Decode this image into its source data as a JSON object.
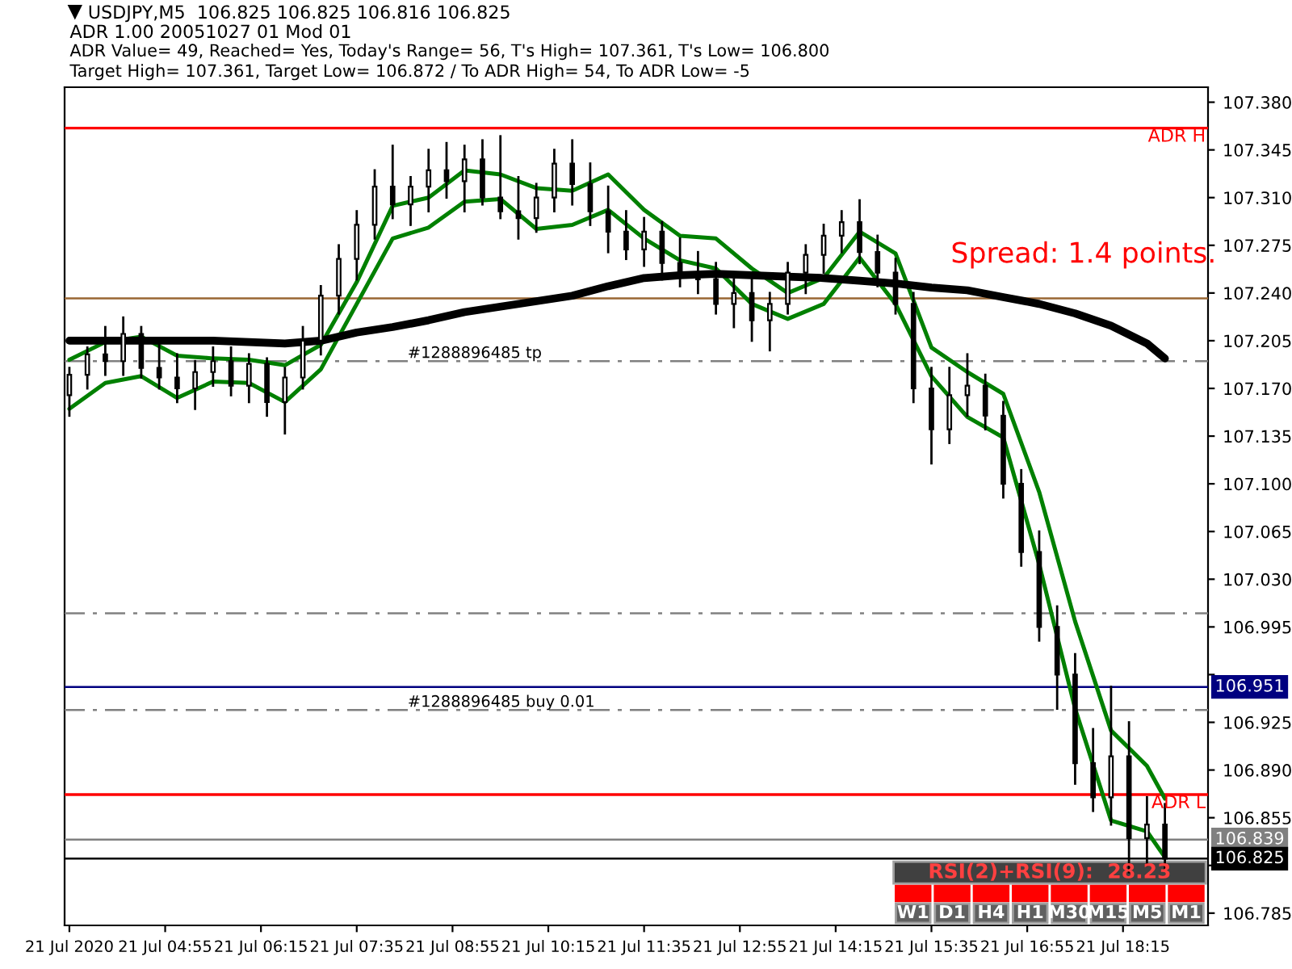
{
  "chart_data": {
    "type": "candlestick",
    "title": "USDJPY,M5  106.825 106.825 106.816 106.825",
    "subtitle": "ADR 1.00 20051027 01 Mod 01",
    "annotations": [
      "ADR Value= 49, Reached= Yes, Today's Range= 56, T's High= 107.361, T's Low= 106.800",
      "Target High= 107.361, Target Low= 106.872 / To ADR High= 54, To ADR Low= -5",
      "Spread: 1.4 points.",
      "RSI(2)+RSI(9):  28.23",
      "W1",
      "D1",
      "H4",
      "H1",
      "M30",
      "M15",
      "M5",
      "M1"
    ],
    "color": "#000000",
    "x": [
      "2020-07-21T03:35",
      "2020-07-21T03:50",
      "2020-07-21T04:05",
      "2020-07-21T04:20",
      "2020-07-21T04:35",
      "2020-07-21T04:50",
      "2020-07-21T05:05",
      "2020-07-21T05:20",
      "2020-07-21T05:35",
      "2020-07-21T05:50",
      "2020-07-21T06:05",
      "2020-07-21T06:20",
      "2020-07-21T06:35",
      "2020-07-21T06:50",
      "2020-07-21T07:05",
      "2020-07-21T07:20",
      "2020-07-21T07:35",
      "2020-07-21T07:50",
      "2020-07-21T08:05",
      "2020-07-21T08:20",
      "2020-07-21T08:35",
      "2020-07-21T08:50",
      "2020-07-21T09:05",
      "2020-07-21T09:20",
      "2020-07-21T09:35",
      "2020-07-21T09:50",
      "2020-07-21T10:05",
      "2020-07-21T10:20",
      "2020-07-21T10:35",
      "2020-07-21T10:50",
      "2020-07-21T11:05",
      "2020-07-21T11:20",
      "2020-07-21T11:35",
      "2020-07-21T11:50",
      "2020-07-21T12:05",
      "2020-07-21T12:20",
      "2020-07-21T12:35",
      "2020-07-21T12:50",
      "2020-07-21T13:05",
      "2020-07-21T13:20",
      "2020-07-21T13:35",
      "2020-07-21T13:50",
      "2020-07-21T14:05",
      "2020-07-21T14:20",
      "2020-07-21T14:35",
      "2020-07-21T14:50",
      "2020-07-21T15:05",
      "2020-07-21T15:20",
      "2020-07-21T15:35",
      "2020-07-21T15:50",
      "2020-07-21T16:05",
      "2020-07-21T16:20",
      "2020-07-21T16:35",
      "2020-07-21T16:50",
      "2020-07-21T17:05",
      "2020-07-21T17:20",
      "2020-07-21T17:35",
      "2020-07-21T17:50",
      "2020-07-21T18:05",
      "2020-07-21T18:20",
      "2020-07-21T18:35",
      "2020-07-21T18:50"
    ],
    "ohlc": [
      [
        107.165,
        107.185,
        107.15,
        107.18
      ],
      [
        107.18,
        107.2,
        107.17,
        107.195
      ],
      [
        107.195,
        107.215,
        107.18,
        107.19
      ],
      [
        107.19,
        107.222,
        107.18,
        107.21
      ],
      [
        107.21,
        107.215,
        107.178,
        107.185
      ],
      [
        107.185,
        107.205,
        107.17,
        107.178
      ],
      [
        107.178,
        107.195,
        107.16,
        107.17
      ],
      [
        107.17,
        107.19,
        107.155,
        107.182
      ],
      [
        107.182,
        107.2,
        107.172,
        107.19
      ],
      [
        107.19,
        107.2,
        107.165,
        107.172
      ],
      [
        107.172,
        107.195,
        107.16,
        107.188
      ],
      [
        107.188,
        107.192,
        107.15,
        107.16
      ],
      [
        107.16,
        107.185,
        107.137,
        107.178
      ],
      [
        107.178,
        107.215,
        107.17,
        107.205
      ],
      [
        107.205,
        107.245,
        107.195,
        107.238
      ],
      [
        107.238,
        107.275,
        107.225,
        107.265
      ],
      [
        107.265,
        107.3,
        107.25,
        107.29
      ],
      [
        107.29,
        107.33,
        107.28,
        107.318
      ],
      [
        107.318,
        107.348,
        107.295,
        107.305
      ],
      [
        107.305,
        107.325,
        107.29,
        107.318
      ],
      [
        107.318,
        107.345,
        107.3,
        107.33
      ],
      [
        107.33,
        107.35,
        107.31,
        107.322
      ],
      [
        107.322,
        107.348,
        107.3,
        107.338
      ],
      [
        107.338,
        107.352,
        107.305,
        107.31
      ],
      [
        107.31,
        107.355,
        107.295,
        107.3
      ],
      [
        107.3,
        107.325,
        107.28,
        107.295
      ],
      [
        107.295,
        107.32,
        107.285,
        107.31
      ],
      [
        107.31,
        107.345,
        107.3,
        107.335
      ],
      [
        107.335,
        107.352,
        107.305,
        107.32
      ],
      [
        107.32,
        107.335,
        107.29,
        107.3
      ],
      [
        107.3,
        107.318,
        107.27,
        107.285
      ],
      [
        107.285,
        107.3,
        107.265,
        107.272
      ],
      [
        107.272,
        107.295,
        107.26,
        107.285
      ],
      [
        107.285,
        107.292,
        107.25,
        107.262
      ],
      [
        107.262,
        107.28,
        107.245,
        107.255
      ],
      [
        107.255,
        107.27,
        107.24,
        107.25
      ],
      [
        107.25,
        107.262,
        107.225,
        107.232
      ],
      [
        107.232,
        107.25,
        107.215,
        107.24
      ],
      [
        107.24,
        107.255,
        107.205,
        107.22
      ],
      [
        107.22,
        107.24,
        107.198,
        107.232
      ],
      [
        107.232,
        107.262,
        107.225,
        107.255
      ],
      [
        107.255,
        107.275,
        107.24,
        107.268
      ],
      [
        107.268,
        107.29,
        107.255,
        107.282
      ],
      [
        107.282,
        107.3,
        107.27,
        107.292
      ],
      [
        107.292,
        107.308,
        107.262,
        107.27
      ],
      [
        107.27,
        107.282,
        107.245,
        107.255
      ],
      [
        107.255,
        107.265,
        107.225,
        107.232
      ],
      [
        107.232,
        107.24,
        107.16,
        107.17
      ],
      [
        107.17,
        107.185,
        107.115,
        107.14
      ],
      [
        107.14,
        107.185,
        107.13,
        107.165
      ],
      [
        107.165,
        107.195,
        107.15,
        107.172
      ],
      [
        107.172,
        107.18,
        107.14,
        107.15
      ],
      [
        107.15,
        107.16,
        107.09,
        107.1
      ],
      [
        107.1,
        107.11,
        107.04,
        107.05
      ],
      [
        107.05,
        107.065,
        106.985,
        106.995
      ],
      [
        106.995,
        107.01,
        106.935,
        106.96
      ],
      [
        106.96,
        106.975,
        106.88,
        106.895
      ],
      [
        106.895,
        106.92,
        106.86,
        106.87
      ],
      [
        106.87,
        106.951,
        106.85,
        106.9
      ],
      [
        106.9,
        106.925,
        106.815,
        106.84
      ],
      [
        106.84,
        106.87,
        106.82,
        106.85
      ],
      [
        106.85,
        106.865,
        106.816,
        106.825
      ]
    ],
    "series": [
      {
        "type": "line",
        "color": "#008000",
        "x": [
          "2020-07-21T03:35",
          "2020-07-21T04:05",
          "2020-07-21T04:35",
          "2020-07-21T05:05",
          "2020-07-21T05:35",
          "2020-07-21T06:05",
          "2020-07-21T06:35",
          "2020-07-21T07:05",
          "2020-07-21T07:35",
          "2020-07-21T08:05",
          "2020-07-21T08:35",
          "2020-07-21T09:05",
          "2020-07-21T09:35",
          "2020-07-21T10:05",
          "2020-07-21T10:35",
          "2020-07-21T11:05",
          "2020-07-21T11:35",
          "2020-07-21T12:05",
          "2020-07-21T12:35",
          "2020-07-21T13:05",
          "2020-07-21T13:35",
          "2020-07-21T14:05",
          "2020-07-21T14:35",
          "2020-07-21T15:05",
          "2020-07-21T15:35",
          "2020-07-21T16:05",
          "2020-07-21T16:35",
          "2020-07-21T17:05",
          "2020-07-21T17:35",
          "2020-07-21T18:05",
          "2020-07-21T18:35",
          "2020-07-21T18:50"
        ],
        "values": [
          107.191,
          107.204,
          107.208,
          107.194,
          107.192,
          107.191,
          107.187,
          107.202,
          107.248,
          107.304,
          107.31,
          107.33,
          107.327,
          107.317,
          107.315,
          107.327,
          107.301,
          107.282,
          107.28,
          107.258,
          107.24,
          107.251,
          107.285,
          107.269,
          107.2,
          107.182,
          107.166,
          107.094,
          106.999,
          106.919,
          106.893,
          106.869
        ]
      },
      {
        "type": "line",
        "color": "#008000",
        "x": [
          "2020-07-21T03:35",
          "2020-07-21T04:05",
          "2020-07-21T04:35",
          "2020-07-21T05:05",
          "2020-07-21T05:35",
          "2020-07-21T06:05",
          "2020-07-21T06:35",
          "2020-07-21T07:05",
          "2020-07-21T07:35",
          "2020-07-21T08:05",
          "2020-07-21T08:35",
          "2020-07-21T09:05",
          "2020-07-21T09:35",
          "2020-07-21T10:05",
          "2020-07-21T10:35",
          "2020-07-21T11:05",
          "2020-07-21T11:35",
          "2020-07-21T12:05",
          "2020-07-21T12:35",
          "2020-07-21T13:05",
          "2020-07-21T13:35",
          "2020-07-21T14:05",
          "2020-07-21T14:35",
          "2020-07-21T15:05",
          "2020-07-21T15:35",
          "2020-07-21T16:05",
          "2020-07-21T16:35",
          "2020-07-21T17:05",
          "2020-07-21T17:35",
          "2020-07-21T18:05",
          "2020-07-21T18:35",
          "2020-07-21T18:50"
        ],
        "values": [
          107.155,
          107.174,
          107.179,
          107.163,
          107.175,
          107.174,
          107.16,
          107.184,
          107.232,
          107.28,
          107.288,
          107.307,
          107.309,
          107.287,
          107.29,
          107.301,
          107.28,
          107.264,
          107.258,
          107.232,
          107.221,
          107.232,
          107.266,
          107.232,
          107.179,
          107.149,
          107.134,
          107.041,
          106.935,
          106.853,
          106.845,
          106.826
        ]
      },
      {
        "type": "line",
        "color": "#000000",
        "x": [
          "2020-07-21T03:35",
          "2020-07-21T04:05",
          "2020-07-21T04:35",
          "2020-07-21T05:05",
          "2020-07-21T05:35",
          "2020-07-21T06:05",
          "2020-07-21T06:35",
          "2020-07-21T07:05",
          "2020-07-21T07:35",
          "2020-07-21T08:05",
          "2020-07-21T08:35",
          "2020-07-21T09:05",
          "2020-07-21T09:35",
          "2020-07-21T10:05",
          "2020-07-21T10:35",
          "2020-07-21T11:05",
          "2020-07-21T11:35",
          "2020-07-21T12:05",
          "2020-07-21T12:35",
          "2020-07-21T13:05",
          "2020-07-21T13:35",
          "2020-07-21T14:05",
          "2020-07-21T14:35",
          "2020-07-21T15:05",
          "2020-07-21T15:35",
          "2020-07-21T16:05",
          "2020-07-21T16:35",
          "2020-07-21T17:05",
          "2020-07-21T17:35",
          "2020-07-21T18:05",
          "2020-07-21T18:35",
          "2020-07-21T18:50"
        ],
        "values": [
          107.205,
          107.205,
          107.205,
          107.205,
          107.205,
          107.204,
          107.203,
          107.205,
          107.211,
          107.215,
          107.22,
          107.226,
          107.23,
          107.234,
          107.238,
          107.245,
          107.251,
          107.253,
          107.254,
          107.253,
          107.252,
          107.251,
          107.249,
          107.247,
          107.244,
          107.242,
          107.237,
          107.232,
          107.225,
          107.216,
          107.203,
          107.192
        ]
      }
    ],
    "ref_lines": [
      {
        "axis": "y",
        "value": 107.361,
        "label": "ADR H",
        "color": "#ff0000",
        "line_style": "solid"
      },
      {
        "axis": "y",
        "value": 107.236,
        "label": null,
        "color": "#996633",
        "line_style": "solid"
      },
      {
        "axis": "y",
        "value": 107.19,
        "label": "#1288896485 tp",
        "color": "#808080",
        "line_style": "dashed"
      },
      {
        "axis": "y",
        "value": 107.005,
        "label": null,
        "color": "#808080",
        "line_style": "dashed"
      },
      {
        "axis": "y",
        "value": 106.951,
        "label": "106.951",
        "color": "#000080",
        "line_style": "solid"
      },
      {
        "axis": "y",
        "value": 106.934,
        "label": "#1288896485 buy 0.01",
        "color": "#808080",
        "line_style": "dashed"
      },
      {
        "axis": "y",
        "value": 106.872,
        "label": "ADR L",
        "color": "#ff0000",
        "line_style": "solid"
      },
      {
        "axis": "y",
        "value": 106.839,
        "label": "106.839",
        "color": "#808080",
        "line_style": "solid"
      },
      {
        "axis": "y",
        "value": 106.825,
        "label": "106.825",
        "color": "#000000",
        "line_style": "solid"
      }
    ],
    "xlim": [
      "2020-07-21T03:31",
      "2020-07-21T19:26"
    ],
    "xticks": [
      {
        "value": "2020-07-21T03:35",
        "label": "21 Jul 2020"
      },
      {
        "value": "2020-07-21T04:55",
        "label": "21 Jul 04:55"
      },
      {
        "value": "2020-07-21T06:15",
        "label": "21 Jul 06:15"
      },
      {
        "value": "2020-07-21T07:35",
        "label": "21 Jul 07:35"
      },
      {
        "value": "2020-07-21T08:55",
        "label": "21 Jul 08:55"
      },
      {
        "value": "2020-07-21T10:15",
        "label": "21 Jul 10:15"
      },
      {
        "value": "2020-07-21T11:35",
        "label": "21 Jul 11:35"
      },
      {
        "value": "2020-07-21T12:55",
        "label": "21 Jul 12:55"
      },
      {
        "value": "2020-07-21T14:15",
        "label": "21 Jul 14:15"
      },
      {
        "value": "2020-07-21T15:35",
        "label": "21 Jul 15:35"
      },
      {
        "value": "2020-07-21T16:55",
        "label": "21 Jul 16:55"
      },
      {
        "value": "2020-07-21T18:15",
        "label": "21 Jul 18:15"
      }
    ],
    "ylim": [
      106.776,
      107.391
    ],
    "yticks": [
      {
        "value": 107.38,
        "label": "107.380"
      },
      {
        "value": 107.345,
        "label": "107.345"
      },
      {
        "value": 107.31,
        "label": "107.310"
      },
      {
        "value": 107.275,
        "label": "107.275"
      },
      {
        "value": 107.24,
        "label": "107.240"
      },
      {
        "value": 107.205,
        "label": "107.205"
      },
      {
        "value": 107.17,
        "label": "107.170"
      },
      {
        "value": 107.135,
        "label": "107.135"
      },
      {
        "value": 107.1,
        "label": "107.100"
      },
      {
        "value": 107.065,
        "label": "107.065"
      },
      {
        "value": 107.03,
        "label": "107.030"
      },
      {
        "value": 106.995,
        "label": "106.995"
      },
      {
        "value": 106.96,
        "label": null
      },
      {
        "value": 106.925,
        "label": "106.925"
      },
      {
        "value": 106.89,
        "label": "106.890"
      },
      {
        "value": 106.855,
        "label": "106.855"
      },
      {
        "value": 106.82,
        "label": null
      },
      {
        "value": 106.785,
        "label": "106.785"
      }
    ],
    "grid": false,
    "legend": false
  }
}
